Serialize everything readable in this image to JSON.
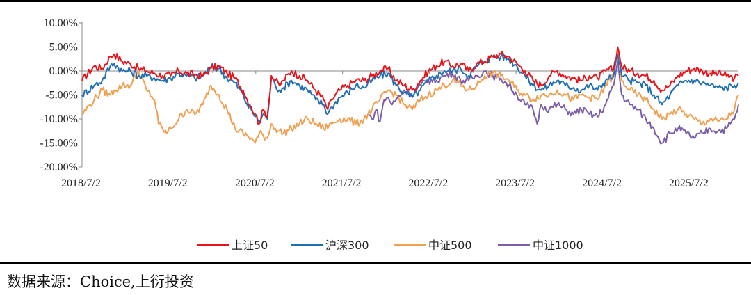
{
  "chart_data": {
    "type": "line",
    "title": "",
    "xlabel": "",
    "ylabel": "",
    "x_range": [
      "2018-07-02",
      "2026-01-23"
    ],
    "ylim": [
      -20,
      10
    ],
    "y_ticks": [
      10,
      5,
      0,
      -5,
      -10,
      -15,
      -20
    ],
    "y_tick_labels": [
      "10.00%",
      "5.00%",
      "0.00%",
      "-5.00%",
      "-10.00%",
      "-15.00%",
      "-20.00%"
    ],
    "x_tick_labels": [
      "2018/7/2",
      "2019/7/2",
      "2020/7/2",
      "2021/7/2",
      "2022/7/2",
      "2023/7/2",
      "2024/7/2",
      "2025/7/2"
    ],
    "grid": false,
    "legend_position": "bottom",
    "series": [
      {
        "name": "上证50",
        "color": "#e8141c",
        "start": "2018-07-02",
        "points": [
          [
            0,
            -2
          ],
          [
            3,
            1
          ],
          [
            5,
            0.5
          ],
          [
            7,
            3
          ],
          [
            8,
            3.5
          ],
          [
            10,
            2
          ],
          [
            12,
            1.5
          ],
          [
            14,
            0.5
          ],
          [
            16,
            0
          ],
          [
            18,
            -0.5
          ],
          [
            20,
            -1
          ],
          [
            22,
            -1
          ],
          [
            24,
            0
          ],
          [
            26,
            -0.5
          ],
          [
            28,
            -0.8
          ],
          [
            30,
            -1
          ],
          [
            32,
            0.5
          ],
          [
            34,
            1
          ],
          [
            36,
            -0.5
          ],
          [
            38,
            -1.5
          ],
          [
            40,
            -4
          ],
          [
            41,
            -6
          ],
          [
            42,
            -7.5
          ],
          [
            43,
            -9
          ],
          [
            44,
            -11
          ],
          [
            45,
            -8
          ],
          [
            46,
            -9.5
          ],
          [
            47,
            -1
          ],
          [
            48,
            -2
          ],
          [
            49,
            -3
          ],
          [
            50,
            -2
          ],
          [
            52,
            0
          ],
          [
            54,
            -1
          ],
          [
            56,
            -2
          ],
          [
            58,
            -4
          ],
          [
            60,
            -6
          ],
          [
            61,
            -8
          ],
          [
            62,
            -6
          ],
          [
            64,
            -4
          ],
          [
            66,
            -3
          ],
          [
            68,
            -2
          ],
          [
            70,
            -2
          ],
          [
            72,
            -1
          ],
          [
            74,
            0
          ],
          [
            76,
            0.5
          ],
          [
            78,
            -2
          ],
          [
            80,
            -3
          ],
          [
            82,
            -4
          ],
          [
            84,
            -2
          ],
          [
            86,
            0
          ],
          [
            88,
            1
          ],
          [
            90,
            2
          ],
          [
            92,
            1
          ],
          [
            94,
            1.5
          ],
          [
            96,
            0
          ],
          [
            98,
            1.5
          ],
          [
            100,
            2
          ],
          [
            102,
            3
          ],
          [
            104,
            3.5
          ],
          [
            106,
            3
          ],
          [
            108,
            1.5
          ],
          [
            110,
            0
          ],
          [
            112,
            -2
          ],
          [
            114,
            -3
          ],
          [
            116,
            -1
          ],
          [
            118,
            0
          ],
          [
            120,
            -1
          ],
          [
            122,
            -1.5
          ],
          [
            124,
            -2
          ],
          [
            126,
            -1
          ],
          [
            128,
            -1.5
          ],
          [
            130,
            0
          ],
          [
            132,
            0.5
          ],
          [
            133,
            5
          ],
          [
            134,
            1
          ],
          [
            136,
            0
          ],
          [
            138,
            -0.5
          ],
          [
            140,
            -1
          ],
          [
            142,
            -2
          ],
          [
            144,
            -4
          ],
          [
            146,
            -3
          ],
          [
            148,
            -1
          ],
          [
            150,
            0
          ],
          [
            152,
            0.5
          ],
          [
            154,
            0
          ],
          [
            156,
            -0.5
          ],
          [
            158,
            -0.5
          ],
          [
            160,
            -1
          ],
          [
            162,
            -1.5
          ],
          [
            163,
            -1
          ]
        ]
      },
      {
        "name": "沪深300",
        "color": "#1f6fb5",
        "start": "2018-07-02",
        "points": [
          [
            0,
            -5
          ],
          [
            3,
            -3
          ],
          [
            5,
            -2
          ],
          [
            7,
            1
          ],
          [
            8,
            1.5
          ],
          [
            10,
            0
          ],
          [
            12,
            0
          ],
          [
            14,
            -1
          ],
          [
            16,
            -1
          ],
          [
            18,
            -1.5
          ],
          [
            20,
            -2
          ],
          [
            22,
            -1.5
          ],
          [
            24,
            -0.5
          ],
          [
            26,
            -1
          ],
          [
            28,
            -1.5
          ],
          [
            30,
            -1
          ],
          [
            32,
            0.8
          ],
          [
            34,
            0.5
          ],
          [
            36,
            -1.5
          ],
          [
            38,
            -2.5
          ],
          [
            40,
            -5
          ],
          [
            41,
            -7
          ],
          [
            42,
            -8
          ],
          [
            43,
            -9.5
          ],
          [
            44,
            -10.5
          ],
          [
            45,
            -9
          ],
          [
            46,
            -10
          ],
          [
            47,
            -1.5
          ],
          [
            48,
            -3
          ],
          [
            49,
            -4
          ],
          [
            50,
            -3.5
          ],
          [
            52,
            -2
          ],
          [
            54,
            -3
          ],
          [
            56,
            -4
          ],
          [
            58,
            -6
          ],
          [
            60,
            -7
          ],
          [
            61,
            -9
          ],
          [
            62,
            -7.5
          ],
          [
            64,
            -5.5
          ],
          [
            66,
            -4.5
          ],
          [
            68,
            -3
          ],
          [
            70,
            -3.5
          ],
          [
            72,
            -2
          ],
          [
            74,
            -1
          ],
          [
            76,
            -0.5
          ],
          [
            78,
            -3
          ],
          [
            80,
            -4.5
          ],
          [
            82,
            -5.5
          ],
          [
            84,
            -4
          ],
          [
            86,
            -2
          ],
          [
            88,
            -1
          ],
          [
            90,
            0
          ],
          [
            92,
            0
          ],
          [
            94,
            0.5
          ],
          [
            96,
            -1
          ],
          [
            98,
            1
          ],
          [
            100,
            2
          ],
          [
            102,
            3
          ],
          [
            104,
            3
          ],
          [
            106,
            2.5
          ],
          [
            108,
            1
          ],
          [
            110,
            -1
          ],
          [
            112,
            -3
          ],
          [
            114,
            -4
          ],
          [
            116,
            -3
          ],
          [
            118,
            -2
          ],
          [
            120,
            -3
          ],
          [
            122,
            -3.5
          ],
          [
            124,
            -4
          ],
          [
            126,
            -3
          ],
          [
            128,
            -4
          ],
          [
            130,
            -2
          ],
          [
            132,
            -1
          ],
          [
            133,
            3.5
          ],
          [
            134,
            -1
          ],
          [
            136,
            -2
          ],
          [
            138,
            -2.5
          ],
          [
            140,
            -3
          ],
          [
            142,
            -5
          ],
          [
            144,
            -7
          ],
          [
            146,
            -5
          ],
          [
            148,
            -3
          ],
          [
            150,
            -2
          ],
          [
            152,
            -2
          ],
          [
            154,
            -2.5
          ],
          [
            156,
            -3
          ],
          [
            158,
            -3.5
          ],
          [
            160,
            -3.5
          ],
          [
            162,
            -3
          ],
          [
            163,
            -2.5
          ]
        ]
      },
      {
        "name": "中证500",
        "color": "#f0a050",
        "start": "2018-07-02",
        "points": [
          [
            0,
            -9
          ],
          [
            2,
            -7
          ],
          [
            3,
            -6
          ],
          [
            5,
            -4
          ],
          [
            7,
            -5
          ],
          [
            8,
            -4
          ],
          [
            10,
            -3
          ],
          [
            12,
            -3
          ],
          [
            14,
            0
          ],
          [
            16,
            -4
          ],
          [
            18,
            -6
          ],
          [
            19,
            -11
          ],
          [
            20,
            -12
          ],
          [
            21,
            -13
          ],
          [
            22,
            -12
          ],
          [
            24,
            -10
          ],
          [
            26,
            -8
          ],
          [
            28,
            -9
          ],
          [
            30,
            -7
          ],
          [
            32,
            -3
          ],
          [
            34,
            -5
          ],
          [
            36,
            -8
          ],
          [
            38,
            -12
          ],
          [
            40,
            -13
          ],
          [
            42,
            -14
          ],
          [
            43,
            -15
          ],
          [
            44,
            -13
          ],
          [
            46,
            -14
          ],
          [
            47,
            -11
          ],
          [
            48,
            -12
          ],
          [
            50,
            -13
          ],
          [
            52,
            -12
          ],
          [
            54,
            -11
          ],
          [
            56,
            -10
          ],
          [
            58,
            -11
          ],
          [
            60,
            -12
          ],
          [
            62,
            -11
          ],
          [
            64,
            -10
          ],
          [
            66,
            -10
          ],
          [
            68,
            -11
          ],
          [
            70,
            -10
          ],
          [
            72,
            -8
          ],
          [
            74,
            -6
          ],
          [
            76,
            -4
          ],
          [
            78,
            -5
          ],
          [
            80,
            -7
          ],
          [
            82,
            -8
          ],
          [
            84,
            -6
          ],
          [
            86,
            -5
          ],
          [
            88,
            -4
          ],
          [
            90,
            -3
          ],
          [
            92,
            -2
          ],
          [
            94,
            -3
          ],
          [
            96,
            -4
          ],
          [
            98,
            -3
          ],
          [
            100,
            -1
          ],
          [
            102,
            -0.5
          ],
          [
            104,
            -1
          ],
          [
            106,
            -2
          ],
          [
            108,
            -4
          ],
          [
            110,
            -5
          ],
          [
            112,
            -6
          ],
          [
            114,
            -5
          ],
          [
            116,
            -5
          ],
          [
            118,
            -4
          ],
          [
            120,
            -5
          ],
          [
            122,
            -6
          ],
          [
            124,
            -5
          ],
          [
            126,
            -5.5
          ],
          [
            128,
            -6
          ],
          [
            130,
            -3
          ],
          [
            132,
            -1
          ],
          [
            133,
            4
          ],
          [
            134,
            -2
          ],
          [
            136,
            -4
          ],
          [
            138,
            -5
          ],
          [
            140,
            -6
          ],
          [
            142,
            -8
          ],
          [
            144,
            -10
          ],
          [
            146,
            -9
          ],
          [
            148,
            -8
          ],
          [
            150,
            -9
          ],
          [
            152,
            -10
          ],
          [
            154,
            -11
          ],
          [
            156,
            -10
          ],
          [
            158,
            -10.5
          ],
          [
            160,
            -10
          ],
          [
            162,
            -8
          ],
          [
            163,
            -5
          ]
        ]
      },
      {
        "name": "中证1000",
        "color": "#7b5ea8",
        "start": "2018-07-02",
        "points": [
          [
            71,
            -9
          ],
          [
            72,
            -10
          ],
          [
            73,
            -8
          ],
          [
            74,
            -10.5
          ],
          [
            75,
            -6
          ],
          [
            76,
            -5.5
          ],
          [
            77,
            -7
          ],
          [
            78,
            -6
          ],
          [
            80,
            -4
          ],
          [
            82,
            -5
          ],
          [
            84,
            -3
          ],
          [
            86,
            -2
          ],
          [
            88,
            -2
          ],
          [
            90,
            -1
          ],
          [
            92,
            -0.5
          ],
          [
            94,
            -2
          ],
          [
            96,
            -2
          ],
          [
            98,
            -1
          ],
          [
            100,
            0
          ],
          [
            102,
            -1
          ],
          [
            104,
            -1.5
          ],
          [
            106,
            -3
          ],
          [
            108,
            -5
          ],
          [
            110,
            -7
          ],
          [
            112,
            -8
          ],
          [
            113,
            -11
          ],
          [
            114,
            -7
          ],
          [
            116,
            -8
          ],
          [
            118,
            -7
          ],
          [
            120,
            -8
          ],
          [
            122,
            -9
          ],
          [
            124,
            -8
          ],
          [
            126,
            -9
          ],
          [
            128,
            -9.5
          ],
          [
            130,
            -7
          ],
          [
            132,
            -3
          ],
          [
            133,
            2
          ],
          [
            134,
            -5
          ],
          [
            136,
            -7
          ],
          [
            138,
            -8
          ],
          [
            140,
            -10
          ],
          [
            142,
            -12
          ],
          [
            144,
            -15
          ],
          [
            146,
            -13
          ],
          [
            148,
            -12
          ],
          [
            150,
            -13
          ],
          [
            152,
            -14
          ],
          [
            154,
            -13
          ],
          [
            156,
            -12
          ],
          [
            158,
            -12.5
          ],
          [
            160,
            -12
          ],
          [
            162,
            -10
          ],
          [
            163,
            -7
          ]
        ]
      }
    ]
  },
  "footer": {
    "source_text": "数据来源：Choice,上衍投资"
  }
}
